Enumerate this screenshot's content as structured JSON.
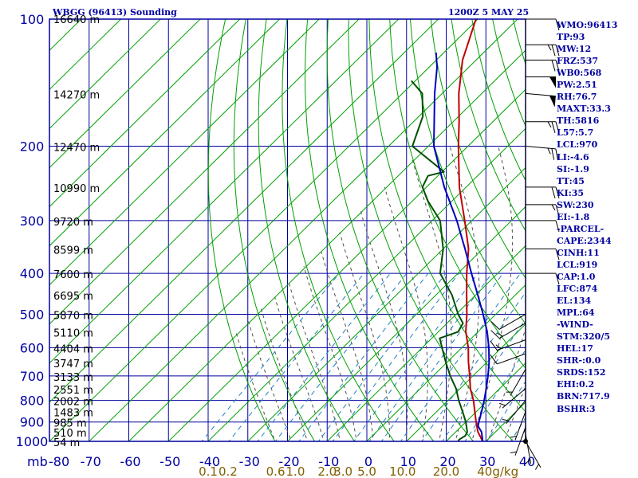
{
  "header": {
    "station": "WBGG (96413) Sounding",
    "time": "1200Z  5 MAY 25"
  },
  "indices": [
    "WMO:96413",
    "TP:93",
    "MW:12",
    "FRZ:537",
    "WB0:568",
    "PW:2.51",
    "RH:76.7",
    "MAXT:33.3",
    "TH:5816",
    "L57:5.7",
    "LCL:970",
    "LI:-4.6",
    "SI:-1.9",
    "TT:45",
    "KI:35",
    "SW:230",
    "EI:-1.8",
    "-PARCEL-",
    "CAPE:2344",
    "CINH:11",
    "LCL:919",
    "CAP:1.0",
    "LFC:874",
    "EL:134",
    "MPL:64",
    "-WIND-",
    "STM:320/5",
    "HEL:17",
    "SHR-:0.0",
    "SRDS:152",
    "EHI:0.2",
    "BRN:717.9",
    "BSHR:3"
  ],
  "colors": {
    "frame": "#0000a0",
    "isotherm": "#00a000",
    "dry_adiabat": "#00a000",
    "moist_adiabat": "#505050",
    "mixing_ratio": "#2080c0",
    "temperature": "#c00000",
    "dewpoint": "#005000",
    "parcel": "#0000c0",
    "mixing_label": "#806000"
  },
  "chart_data": {
    "type": "line",
    "title": "WBGG (96413) Sounding",
    "xlabel": "",
    "ylabel": "mb",
    "ylabel_unit": "mb",
    "log_y": true,
    "skew_t": true,
    "xlim": [
      -80,
      40
    ],
    "ylim": [
      1000,
      100
    ],
    "x_ticks": [
      -80,
      -70,
      -60,
      -50,
      -40,
      -30,
      -20,
      -10,
      0,
      10,
      20,
      30,
      40
    ],
    "y_ticks": [
      100,
      200,
      300,
      400,
      500,
      600,
      700,
      800,
      900,
      1000
    ],
    "height_labels": [
      {
        "p": 100,
        "label": "16640 m"
      },
      {
        "p": 150,
        "label": "14270 m"
      },
      {
        "p": 200,
        "label": "12470 m"
      },
      {
        "p": 250,
        "label": "10990 m"
      },
      {
        "p": 300,
        "label": "9720 m"
      },
      {
        "p": 350,
        "label": "8599 m"
      },
      {
        "p": 400,
        "label": "7600 m"
      },
      {
        "p": 450,
        "label": "6695 m"
      },
      {
        "p": 500,
        "label": "5870 m"
      },
      {
        "p": 550,
        "label": "5110 m"
      },
      {
        "p": 600,
        "label": "4404 m"
      },
      {
        "p": 650,
        "label": "3747 m"
      },
      {
        "p": 700,
        "label": "3133 m"
      },
      {
        "p": 750,
        "label": "2551 m"
      },
      {
        "p": 800,
        "label": "2002 m"
      },
      {
        "p": 850,
        "label": "1483 m"
      },
      {
        "p": 900,
        "label": "985 m"
      },
      {
        "p": 950,
        "label": "510 m"
      },
      {
        "p": 1000,
        "label": "54 m"
      }
    ],
    "mixing_ratio_labels": [
      "0.1",
      "0.2",
      "0.6",
      "1.0",
      "2.0",
      "3.0",
      "5.0",
      "10.0",
      "20.0",
      "40g/kg"
    ],
    "mixing_ratio_label_x": [
      -40,
      -35,
      -23,
      -18,
      -10,
      -6,
      0,
      9,
      20,
      33
    ],
    "series": [
      {
        "name": "temperature",
        "points": [
          [
            1000,
            29.2
          ],
          [
            950,
            25.6
          ],
          [
            900,
            22.6
          ],
          [
            850,
            19.6
          ],
          [
            800,
            16.4
          ],
          [
            750,
            12.6
          ],
          [
            700,
            9.2
          ],
          [
            650,
            5.4
          ],
          [
            600,
            1.6
          ],
          [
            550,
            -3.1
          ],
          [
            500,
            -7.3
          ],
          [
            450,
            -12.3
          ],
          [
            400,
            -17.8
          ],
          [
            350,
            -23.6
          ],
          [
            300,
            -31.8
          ],
          [
            250,
            -41.7
          ],
          [
            200,
            -52.4
          ],
          [
            175,
            -58.5
          ],
          [
            150,
            -65.8
          ],
          [
            125,
            -73.4
          ],
          [
            100,
            -80.5
          ]
        ]
      },
      {
        "name": "dewpoint",
        "points": [
          [
            1000,
            23.0
          ],
          [
            990,
            22.8
          ],
          [
            970,
            23.4
          ],
          [
            950,
            22.9
          ],
          [
            900,
            20.0
          ],
          [
            850,
            16.5
          ],
          [
            800,
            12.7
          ],
          [
            750,
            9.0
          ],
          [
            700,
            4.3
          ],
          [
            650,
            -0.3
          ],
          [
            600,
            -5.0
          ],
          [
            570,
            -8.0
          ],
          [
            550,
            -5.0
          ],
          [
            525,
            -6.0
          ],
          [
            500,
            -9.5
          ],
          [
            450,
            -16.0
          ],
          [
            400,
            -24.5
          ],
          [
            350,
            -30.0
          ],
          [
            300,
            -38.0
          ],
          [
            270,
            -46.0
          ],
          [
            250,
            -51.0
          ],
          [
            235,
            -52.5
          ],
          [
            230,
            -49.5
          ],
          [
            200,
            -64.0
          ],
          [
            170,
            -69.0
          ],
          [
            150,
            -75.0
          ],
          [
            140,
            -81.0
          ]
        ]
      },
      {
        "name": "parcel",
        "points": [
          [
            1000,
            29.2
          ],
          [
            950,
            26.5
          ],
          [
            920,
            24.1
          ],
          [
            900,
            23.3
          ],
          [
            850,
            21.3
          ],
          [
            800,
            19.1
          ],
          [
            750,
            16.6
          ],
          [
            700,
            13.8
          ],
          [
            650,
            10.6
          ],
          [
            600,
            6.8
          ],
          [
            550,
            2.3
          ],
          [
            500,
            -3.2
          ],
          [
            450,
            -9.5
          ],
          [
            400,
            -16.6
          ],
          [
            350,
            -24.5
          ],
          [
            300,
            -33.8
          ],
          [
            250,
            -45.5
          ],
          [
            200,
            -58.6
          ],
          [
            150,
            -71.9
          ],
          [
            130,
            -78.0
          ],
          [
            120,
            -82.0
          ]
        ]
      }
    ],
    "wind_barbs": [
      {
        "p": 100,
        "dir": 90,
        "kt": 10
      },
      {
        "p": 115,
        "dir": 90,
        "kt": 25
      },
      {
        "p": 125,
        "dir": 90,
        "kt": 20
      },
      {
        "p": 137,
        "dir": 90,
        "kt": 50
      },
      {
        "p": 150,
        "dir": 95,
        "kt": 50
      },
      {
        "p": 175,
        "dir": 90,
        "kt": 25
      },
      {
        "p": 200,
        "dir": 95,
        "kt": 25
      },
      {
        "p": 250,
        "dir": 90,
        "kt": 20
      },
      {
        "p": 275,
        "dir": 90,
        "kt": 15
      },
      {
        "p": 300,
        "dir": 90,
        "kt": 10
      },
      {
        "p": 350,
        "dir": 90,
        "kt": 10
      },
      {
        "p": 400,
        "dir": 90,
        "kt": 10
      },
      {
        "p": 500,
        "dir": 240,
        "kt": 10
      },
      {
        "p": 525,
        "dir": 240,
        "kt": 15
      },
      {
        "p": 575,
        "dir": 250,
        "kt": 15
      },
      {
        "p": 620,
        "dir": 250,
        "kt": 10
      },
      {
        "p": 675,
        "dir": 210,
        "kt": 5
      },
      {
        "p": 750,
        "dir": 230,
        "kt": 5
      },
      {
        "p": 800,
        "dir": 220,
        "kt": 5
      },
      {
        "p": 850,
        "dir": 200,
        "kt": 5
      },
      {
        "p": 925,
        "dir": 200,
        "kt": 5
      },
      {
        "p": 960,
        "dir": 170,
        "kt": 5
      },
      {
        "p": 1000,
        "dir": 150,
        "kt": 5
      }
    ]
  }
}
